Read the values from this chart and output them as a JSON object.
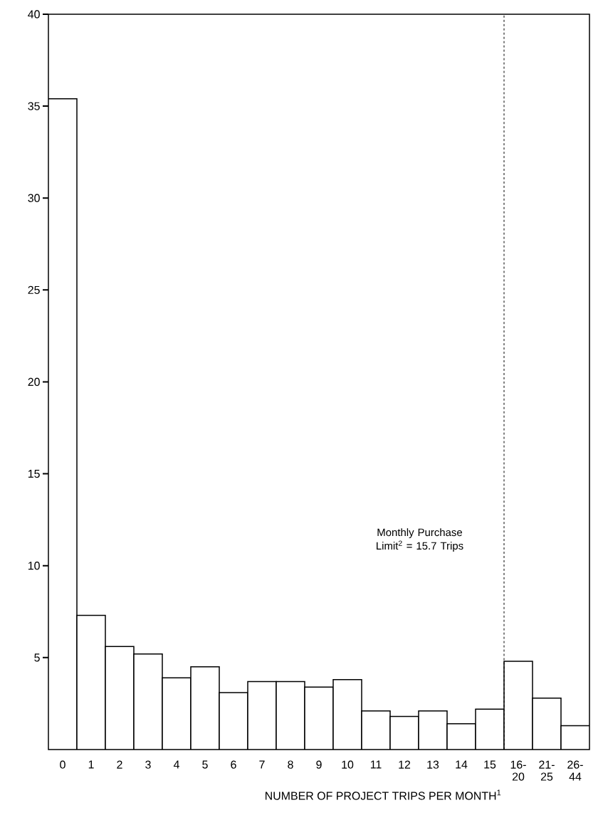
{
  "chart_data": {
    "type": "bar",
    "xlabel": "NUMBER OF PROJECT TRIPS PER MONTH$^{1}$",
    "categories": [
      "0",
      "1",
      "2",
      "3",
      "4",
      "5",
      "6",
      "7",
      "8",
      "9",
      "10",
      "11",
      "12",
      "13",
      "14",
      "15",
      "16-20",
      "21-25",
      "26-44"
    ],
    "values": [
      35.4,
      7.3,
      5.6,
      5.2,
      3.9,
      4.5,
      3.1,
      3.7,
      3.7,
      3.4,
      3.8,
      2.1,
      1.8,
      2.1,
      1.4,
      2.2,
      4.8,
      2.8,
      1.3
    ],
    "color": "#ffffff",
    "ylim": [
      0,
      40
    ],
    "yticks": [
      5,
      10,
      15,
      20,
      25,
      30,
      35,
      40
    ],
    "annotations": [
      "Monthly Purchase Limit$^{2}$ = 15.7 Trips"
    ]
  }
}
